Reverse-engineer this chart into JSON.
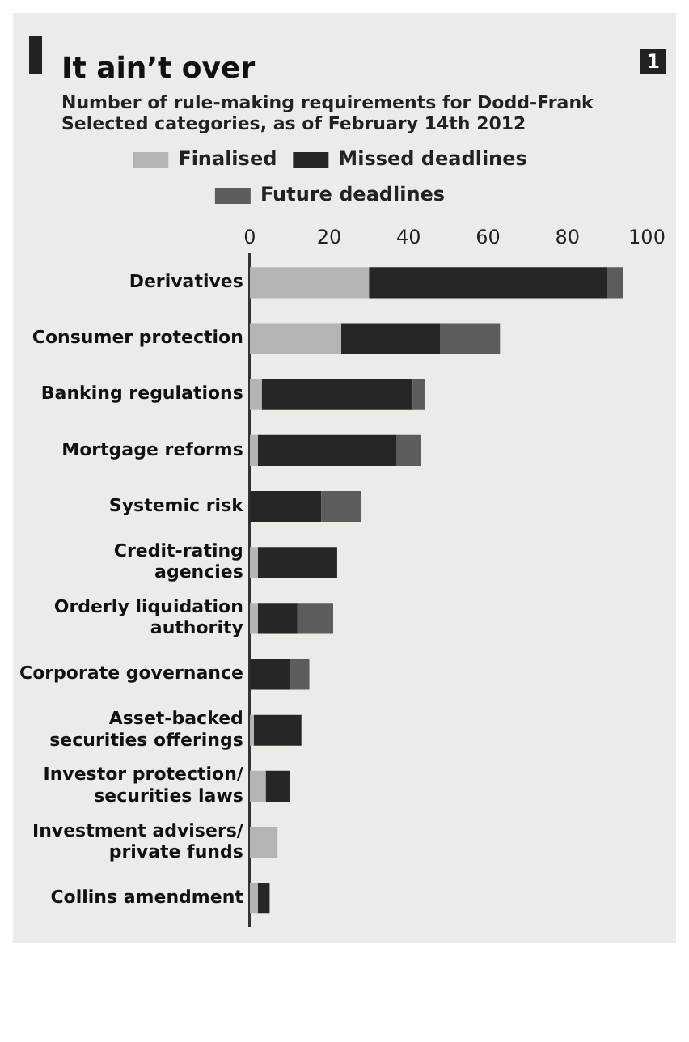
{
  "chart_data": {
    "type": "bar",
    "orientation": "horizontal",
    "stacked": true,
    "title": "It ain’t over",
    "subtitle": "Number of rule-making requirements for Dodd-Frank\nSelected categories, as of February 14th 2012",
    "annotations": [
      "1"
    ],
    "categories": [
      "Derivatives",
      "Consumer protection",
      "Banking regulations",
      "Mortgage reforms",
      "Systemic risk",
      "Credit-rating agencies",
      "Orderly liquidation authority",
      "Corporate governance",
      "Asset-backed securities offerings",
      "Investor protection/ securities laws",
      "Investment advisers/ private funds",
      "Collins amendment"
    ],
    "series": [
      {
        "name": "Finalised",
        "color": "#b4b4b0",
        "values": [
          30,
          23,
          3,
          2,
          0,
          2,
          2,
          0,
          1,
          4,
          7,
          2
        ]
      },
      {
        "name": "Missed deadlines",
        "color": "#262626",
        "values": [
          60,
          25,
          38,
          35,
          18,
          20,
          10,
          10,
          12,
          6,
          0,
          3
        ]
      },
      {
        "name": "Future deadlines",
        "color": "#5c5c5c",
        "values": [
          4,
          15,
          3,
          6,
          10,
          0,
          9,
          5,
          0,
          0,
          0,
          0
        ]
      }
    ],
    "xlim": [
      0,
      100
    ],
    "xticks": [
      0,
      20,
      40,
      60,
      80,
      100
    ],
    "grid": false,
    "legend": "top"
  }
}
